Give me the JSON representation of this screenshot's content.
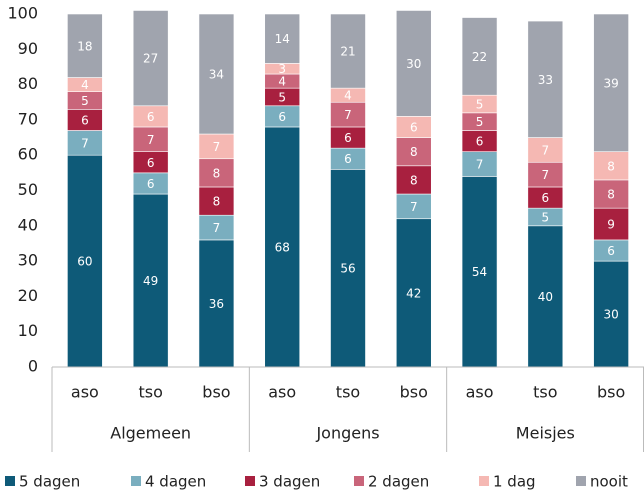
{
  "chart_data": {
    "type": "stacked-bar",
    "groups": [
      "Algemeen",
      "Jongens",
      "Meisjes"
    ],
    "categories": [
      "aso",
      "tso",
      "bso",
      "aso",
      "tso",
      "bso",
      "aso",
      "tso",
      "bso"
    ],
    "series": [
      {
        "name": "5 dagen",
        "color": "#0e5a78",
        "values": [
          60,
          49,
          36,
          68,
          56,
          42,
          54,
          40,
          30
        ]
      },
      {
        "name": "4 dagen",
        "color": "#7aaebf",
        "values": [
          7,
          6,
          7,
          6,
          6,
          7,
          7,
          5,
          6
        ]
      },
      {
        "name": "3 dagen",
        "color": "#a8203f",
        "values": [
          6,
          6,
          8,
          5,
          6,
          8,
          6,
          6,
          9
        ]
      },
      {
        "name": "2 dagen",
        "color": "#c9657a",
        "values": [
          5,
          7,
          8,
          4,
          7,
          8,
          5,
          7,
          8
        ]
      },
      {
        "name": "1 dag",
        "color": "#f5b8b3",
        "values": [
          4,
          6,
          7,
          3,
          4,
          6,
          5,
          7,
          8
        ]
      },
      {
        "name": "nooit",
        "color": "#a0a4ae",
        "values": [
          18,
          27,
          34,
          14,
          21,
          30,
          22,
          33,
          39
        ]
      }
    ],
    "ylim": [
      0,
      100
    ],
    "yticks": [
      0,
      10,
      20,
      30,
      40,
      50,
      60,
      70,
      80,
      90,
      100
    ],
    "legend": "bottom"
  }
}
